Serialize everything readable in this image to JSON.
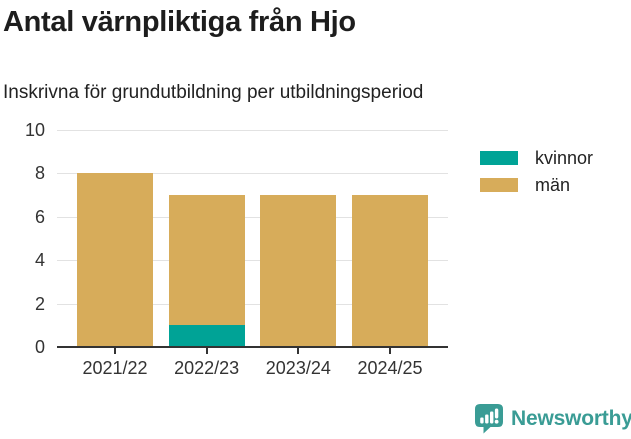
{
  "header": {
    "title": "Antal värnpliktiga från Hjo",
    "subtitle": "Inskrivna för grundutbildning per utbildningsperiod"
  },
  "chart_data": {
    "type": "bar",
    "stacked": true,
    "title": "Antal värnpliktiga från Hjo",
    "subtitle": "Inskrivna för grundutbildning per utbildningsperiod",
    "categories": [
      "2021/22",
      "2022/23",
      "2023/24",
      "2024/25"
    ],
    "series": [
      {
        "name": "kvinnor",
        "color": "#00a396",
        "values": [
          0,
          1,
          0,
          0
        ]
      },
      {
        "name": "män",
        "color": "#d7ac5a",
        "values": [
          8,
          6,
          7,
          7
        ]
      }
    ],
    "totals": [
      8,
      7,
      7,
      7
    ],
    "xlabel": "",
    "ylabel": "",
    "ylim": [
      0,
      10
    ],
    "yticks": [
      0,
      2,
      4,
      6,
      8,
      10
    ],
    "grid": "horizontal",
    "legend_position": "right",
    "axis_color": "#333333",
    "gridline_color": "#e2e2e2"
  },
  "branding": {
    "logo_text": "Newsworthy",
    "logo_color": "#3a9c95",
    "logo_icon": "speech-bubble-bar-chart-icon"
  }
}
